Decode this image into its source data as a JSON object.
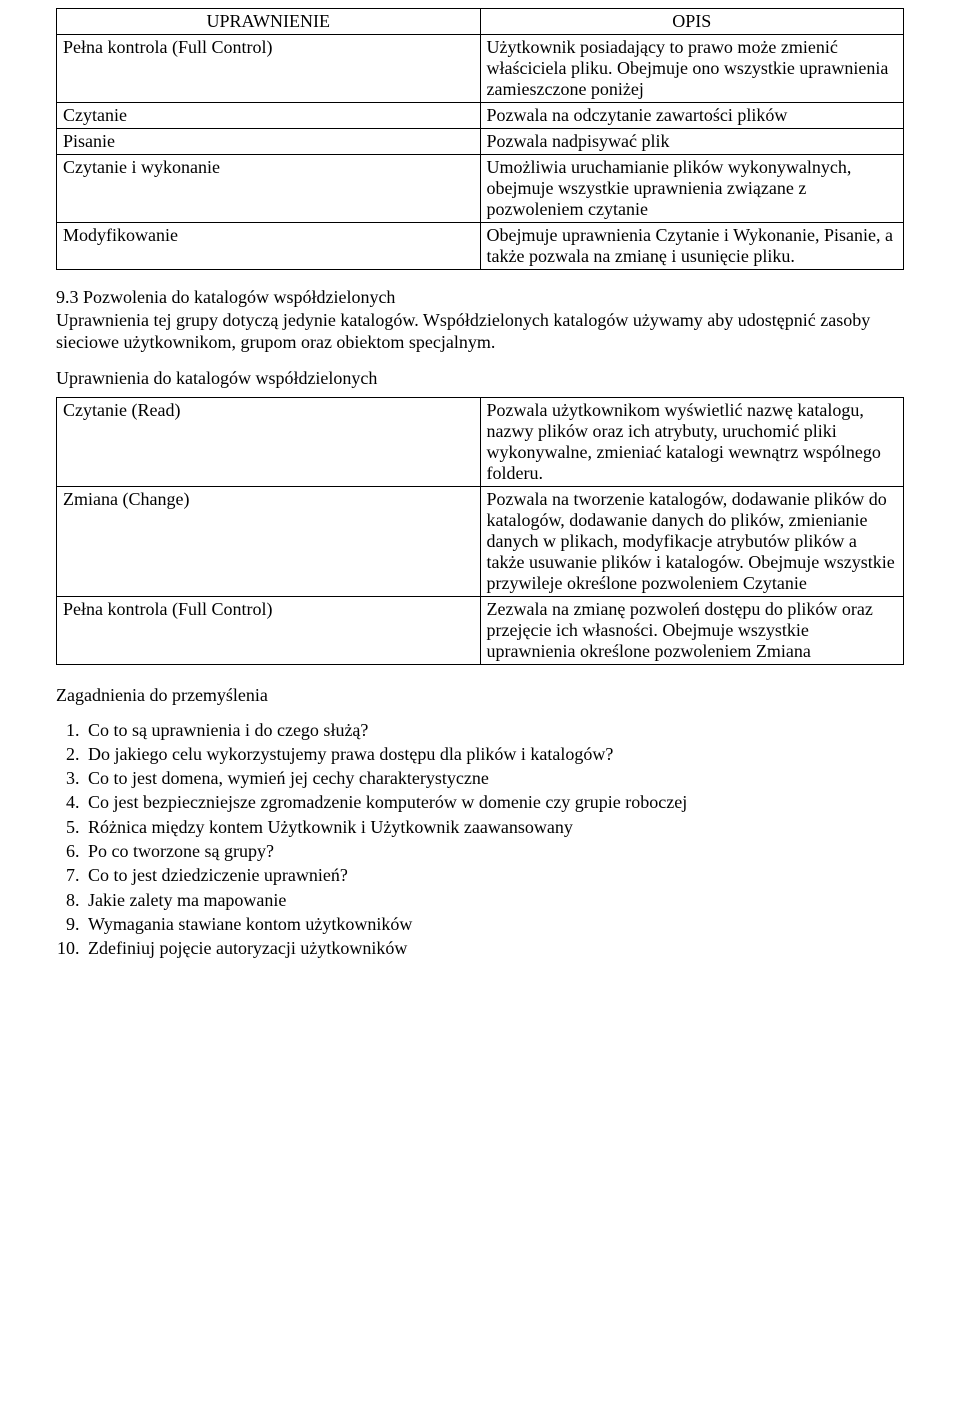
{
  "table1": {
    "header_left": "UPRAWNIENIE",
    "header_right": "OPIS",
    "rows": [
      {
        "perm": "Pełna kontrola (Full Control)",
        "desc": "Użytkownik posiadający to prawo może zmienić właściciela pliku. Obejmuje ono wszystkie uprawnienia zamieszczone poniżej"
      },
      {
        "perm": "Czytanie",
        "desc": "Pozwala na odczytanie zawartości  plików"
      },
      {
        "perm": "Pisanie",
        "desc": "Pozwala nadpisywać plik"
      },
      {
        "perm": "Czytanie i wykonanie",
        "desc": "Umożliwia uruchamianie plików wykonywalnych, obejmuje wszystkie uprawnienia związane z pozwoleniem czytanie"
      },
      {
        "perm": "Modyfikowanie",
        "desc": "Obejmuje uprawnienia Czytanie i Wykonanie, Pisanie, a także pozwala na zmianę i usunięcie pliku."
      }
    ]
  },
  "section93": {
    "title": "9.3  Pozwolenia do katalogów współdzielonych",
    "body": "Uprawnienia tej grupy dotyczą jedynie katalogów. Współdzielonych katalogów używamy aby udostępnić zasoby sieciowe użytkownikom, grupom oraz obiektom specjalnym."
  },
  "subhead2": "Uprawnienia do katalogów współdzielonych",
  "table2": {
    "rows": [
      {
        "perm": "Czytanie (Read)",
        "desc": "Pozwala użytkownikom wyświetlić nazwę katalogu, nazwy plików oraz ich atrybuty, uruchomić pliki wykonywalne, zmieniać katalogi wewnątrz wspólnego folderu."
      },
      {
        "perm": "Zmiana (Change)",
        "desc": "Pozwala na tworzenie katalogów, dodawanie plików do katalogów, dodawanie danych do plików, zmienianie danych w plikach, modyfikacje atrybutów plików a także usuwanie plików i katalogów. Obejmuje wszystkie przywileje określone pozwoleniem Czytanie"
      },
      {
        "perm": "Pełna kontrola (Full Control)",
        "desc": "Zezwala na zmianę pozwoleń dostępu do plików oraz przejęcie ich własności. Obejmuje wszystkie uprawnienia określone pozwoleniem Zmiana"
      }
    ]
  },
  "questions_title": "Zagadnienia do przemyślenia",
  "questions": [
    "Co to są uprawnienia i do czego służą?",
    "Do jakiego celu wykorzystujemy  prawa dostępu dla plików i katalogów?",
    "Co to jest domena, wymień jej cechy charakterystyczne",
    "Co jest bezpieczniejsze zgromadzenie komputerów w domenie czy grupie roboczej",
    "Różnica między kontem Użytkownik i Użytkownik zaawansowany",
    "Po co tworzone są grupy?",
    "Co to jest dziedziczenie uprawnień?",
    "Jakie zalety ma mapowanie",
    "Wymagania stawiane kontom użytkowników",
    "Zdefiniuj pojęcie autoryzacji użytkowników"
  ]
}
